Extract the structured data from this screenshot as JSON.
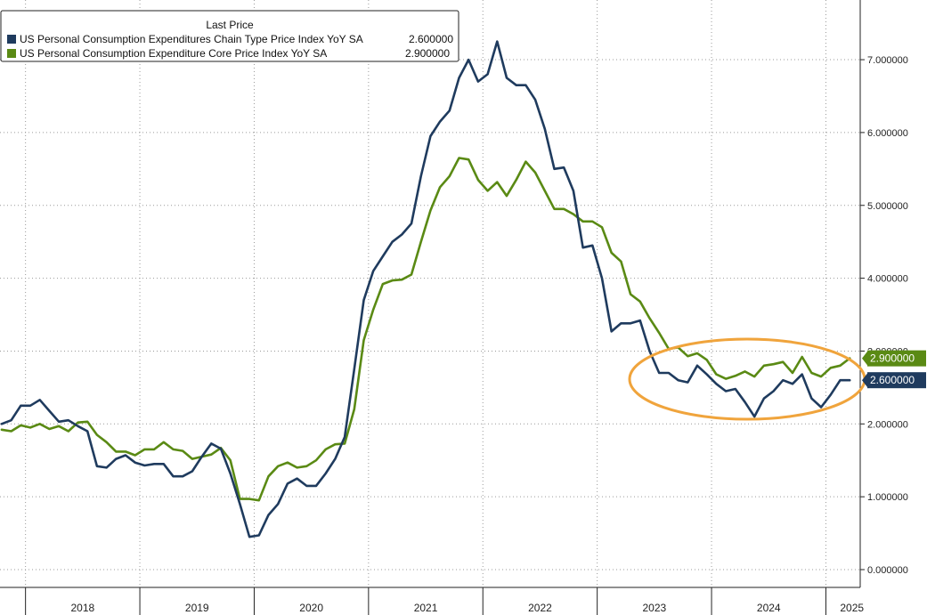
{
  "chart_data": {
    "type": "line",
    "legend": {
      "header": "Last Price",
      "placement": "top-left"
    },
    "grid": true,
    "colors": {
      "headline": "#1f3b5e",
      "core": "#5a8a14",
      "highlight_ellipse": "#f0a43c"
    },
    "x_start": "2017-10",
    "x_end": "2025-07",
    "x_tick_labels": [
      "2018",
      "2019",
      "2020",
      "2021",
      "2022",
      "2023",
      "2024",
      "2025"
    ],
    "ylim": [
      -0.2,
      7.9
    ],
    "y_ticks": [
      0,
      1,
      2,
      3,
      4,
      5,
      6,
      7
    ],
    "y_tick_labels": [
      "0.000000",
      "1.000000",
      "2.000000",
      "3.000000",
      "4.000000",
      "5.000000",
      "6.000000",
      "7.000000"
    ],
    "series": [
      {
        "name": "US Personal Consumption Expenditures Chain Type Price Index YoY SA",
        "last_value": "2.600000",
        "color": "#1f3b5e",
        "start": "2017-10",
        "values": [
          2.0,
          2.05,
          2.25,
          2.25,
          2.33,
          2.18,
          2.03,
          2.05,
          1.97,
          1.9,
          1.42,
          1.4,
          1.52,
          1.57,
          1.47,
          1.43,
          1.45,
          1.45,
          1.28,
          1.28,
          1.35,
          1.55,
          1.73,
          1.66,
          1.32,
          0.9,
          0.45,
          0.47,
          0.75,
          0.9,
          1.18,
          1.25,
          1.15,
          1.15,
          1.32,
          1.52,
          1.82,
          2.75,
          3.7,
          4.1,
          4.3,
          4.5,
          4.6,
          4.75,
          5.4,
          5.95,
          6.15,
          6.3,
          6.75,
          7.0,
          6.7,
          6.8,
          7.25,
          6.75,
          6.65,
          6.65,
          6.45,
          6.05,
          5.5,
          5.52,
          5.2,
          4.42,
          4.45,
          4.0,
          3.27,
          3.38,
          3.38,
          3.42,
          3.0,
          2.7,
          2.7,
          2.6,
          2.57,
          2.8,
          2.68,
          2.55,
          2.45,
          2.48,
          2.3,
          2.1,
          2.35,
          2.45,
          2.6,
          2.55,
          2.68,
          2.35,
          2.23,
          2.4,
          2.6,
          2.6
        ]
      },
      {
        "name": "US Personal Consumption Expenditure Core Price Index YoY SA",
        "last_value": "2.900000",
        "color": "#5a8a14",
        "start": "2017-10",
        "values": [
          1.92,
          1.9,
          1.98,
          1.95,
          2.0,
          1.93,
          1.97,
          1.9,
          2.02,
          2.03,
          1.85,
          1.75,
          1.62,
          1.62,
          1.57,
          1.65,
          1.65,
          1.75,
          1.65,
          1.63,
          1.52,
          1.55,
          1.58,
          1.67,
          1.5,
          0.97,
          0.97,
          0.95,
          1.28,
          1.42,
          1.47,
          1.4,
          1.42,
          1.5,
          1.65,
          1.72,
          1.73,
          2.2,
          3.15,
          3.57,
          3.92,
          3.97,
          3.98,
          4.05,
          4.5,
          4.93,
          5.25,
          5.4,
          5.65,
          5.63,
          5.35,
          5.2,
          5.32,
          5.13,
          5.35,
          5.6,
          5.45,
          5.2,
          4.95,
          4.95,
          4.88,
          4.78,
          4.78,
          4.7,
          4.35,
          4.23,
          3.78,
          3.68,
          3.45,
          3.25,
          3.03,
          3.05,
          2.93,
          2.97,
          2.88,
          2.68,
          2.62,
          2.66,
          2.72,
          2.65,
          2.8,
          2.82,
          2.85,
          2.7,
          2.92,
          2.7,
          2.65,
          2.77,
          2.8,
          2.9
        ]
      }
    ]
  }
}
